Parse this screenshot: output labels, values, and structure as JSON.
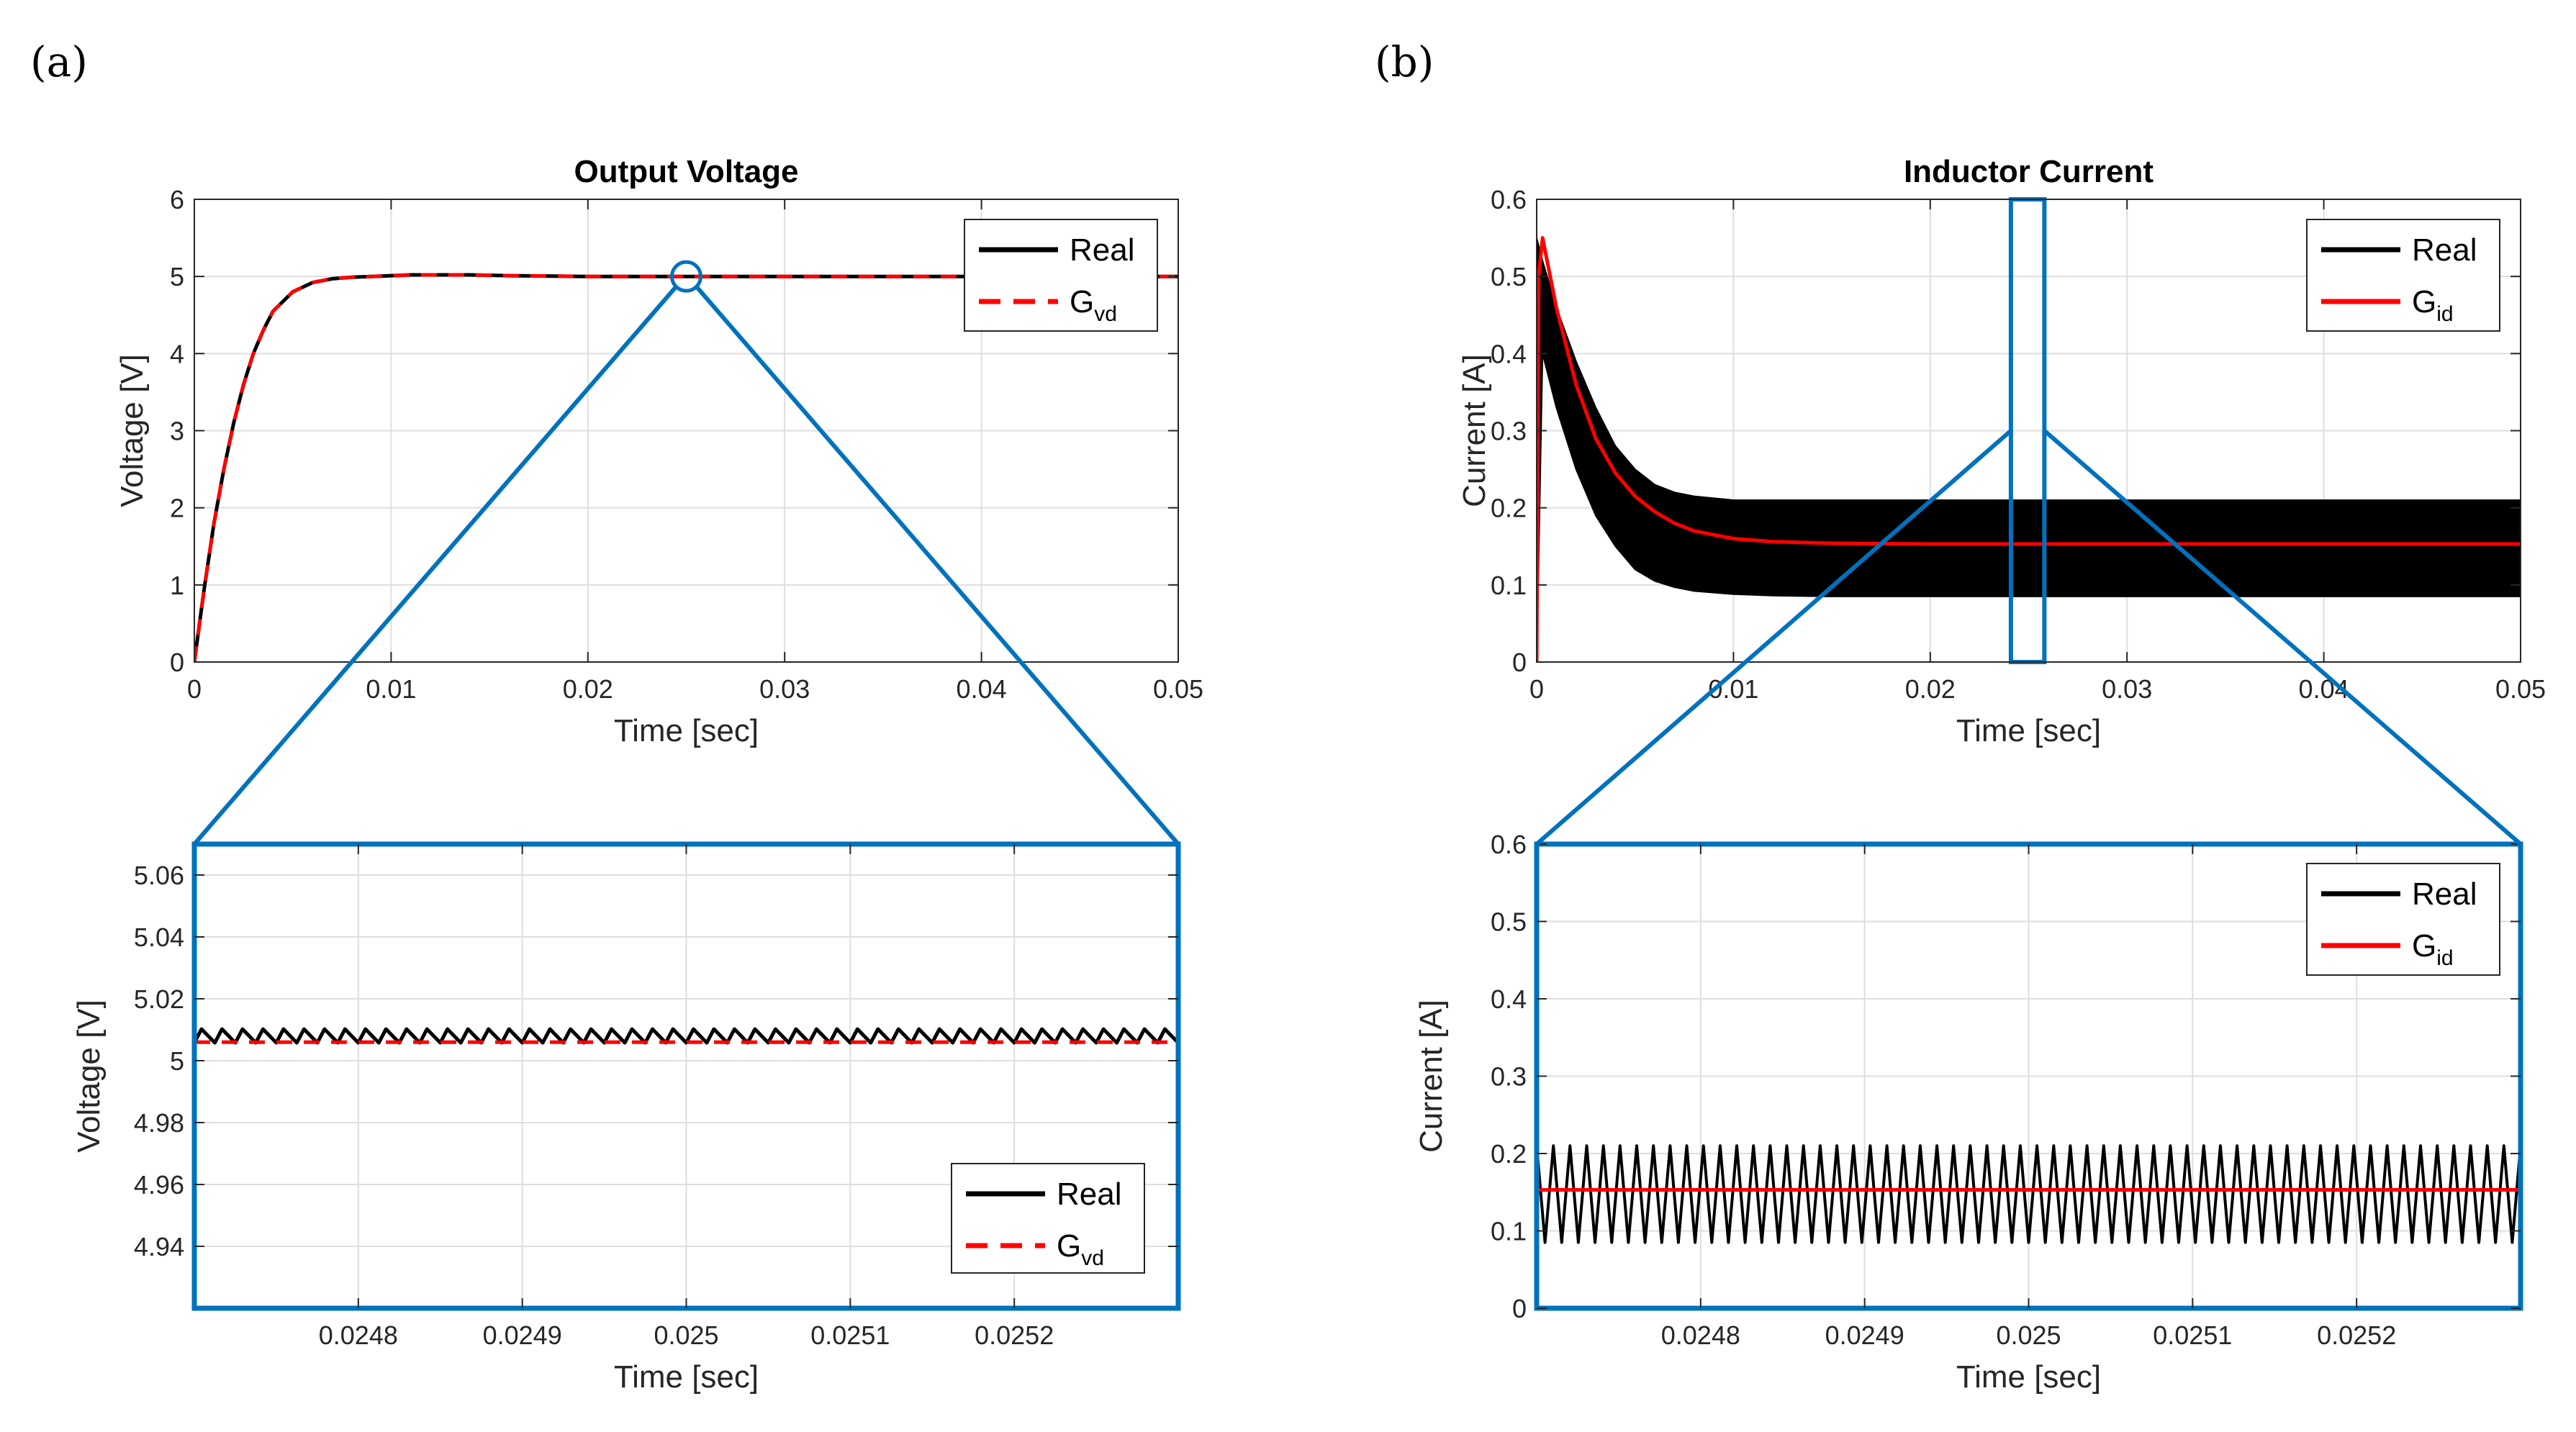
{
  "panel_labels": [
    "(a)",
    "(b)"
  ],
  "colors": {
    "real": "#000000",
    "model": "#ff0000",
    "zoom": "#0072bd",
    "grid": "#dedede",
    "axes": "#262626"
  },
  "chart_data": [
    {
      "id": "a-main",
      "type": "line",
      "title": "Output Voltage",
      "xlabel": "Time [sec]",
      "ylabel": "Voltage [V]",
      "xlim": [
        0,
        0.05
      ],
      "ylim": [
        0,
        6
      ],
      "xticks": [
        0,
        0.01,
        0.02,
        0.03,
        0.04,
        0.05
      ],
      "xtick_labels": [
        "0",
        "0.01",
        "0.02",
        "0.03",
        "0.04",
        "0.05"
      ],
      "yticks": [
        0,
        1,
        2,
        3,
        4,
        5,
        6
      ],
      "ytick_labels": [
        "0",
        "1",
        "2",
        "3",
        "4",
        "5",
        "6"
      ],
      "grid": true,
      "legend_position": "top-right",
      "series": [
        {
          "name": "Real",
          "sub": "",
          "style": "solid",
          "color": "#000000",
          "x": [
            0,
            0.0005,
            0.001,
            0.0015,
            0.002,
            0.0025,
            0.003,
            0.0035,
            0.004,
            0.005,
            0.006,
            0.007,
            0.008,
            0.009,
            0.01,
            0.011,
            0.012,
            0.014,
            0.016,
            0.02,
            0.03,
            0.04,
            0.05
          ],
          "y": [
            0,
            0.95,
            1.8,
            2.5,
            3.1,
            3.6,
            4.0,
            4.3,
            4.55,
            4.8,
            4.92,
            4.97,
            4.99,
            5.0,
            5.01,
            5.02,
            5.02,
            5.02,
            5.01,
            5.0,
            5.0,
            5.0,
            5.0
          ]
        },
        {
          "name": "G",
          "sub": "vd",
          "style": "dashed",
          "color": "#ff0000",
          "x": [
            0,
            0.0005,
            0.001,
            0.0015,
            0.002,
            0.0025,
            0.003,
            0.0035,
            0.004,
            0.005,
            0.006,
            0.007,
            0.008,
            0.009,
            0.01,
            0.011,
            0.012,
            0.014,
            0.016,
            0.02,
            0.03,
            0.04,
            0.05
          ],
          "y": [
            0,
            0.95,
            1.8,
            2.5,
            3.1,
            3.6,
            4.0,
            4.3,
            4.55,
            4.8,
            4.92,
            4.97,
            4.99,
            5.0,
            5.01,
            5.02,
            5.02,
            5.02,
            5.01,
            5.0,
            5.0,
            5.0,
            5.0
          ]
        }
      ],
      "zoom_marker": {
        "shape": "circle",
        "x": 0.025,
        "y": 5.0
      }
    },
    {
      "id": "a-zoom",
      "type": "line",
      "title": "",
      "xlabel": "Time [sec]",
      "ylabel": "Voltage [V]",
      "xlim": [
        0.0247,
        0.0253
      ],
      "ylim": [
        4.92,
        5.07
      ],
      "xticks": [
        0.0248,
        0.0249,
        0.025,
        0.0251,
        0.0252
      ],
      "xtick_labels": [
        "0.0248",
        "0.0249",
        "0.025",
        "0.0251",
        "0.0252"
      ],
      "yticks": [
        4.94,
        4.96,
        4.98,
        5.0,
        5.02,
        5.04,
        5.06
      ],
      "ytick_labels": [
        "4.94",
        "4.96",
        "4.98",
        "5",
        "5.02",
        "5.04",
        "5.06"
      ],
      "grid": true,
      "legend_position": "bottom-right",
      "series": [
        {
          "name": "Real",
          "sub": "",
          "style": "solid",
          "color": "#000000",
          "signal": "ripple",
          "mean": 5.008,
          "amplitude": 0.0022,
          "cycles": 48
        },
        {
          "name": "G",
          "sub": "vd",
          "style": "dashed",
          "color": "#ff0000",
          "signal": "constant",
          "value": 5.006
        }
      ]
    },
    {
      "id": "b-main",
      "type": "line",
      "title": "Inductor Current",
      "xlabel": "Time [sec]",
      "ylabel": "Current [A]",
      "xlim": [
        0,
        0.05
      ],
      "ylim": [
        0,
        0.6
      ],
      "xticks": [
        0,
        0.01,
        0.02,
        0.03,
        0.04,
        0.05
      ],
      "xtick_labels": [
        "0",
        "0.01",
        "0.02",
        "0.03",
        "0.04",
        "0.05"
      ],
      "yticks": [
        0,
        0.1,
        0.2,
        0.3,
        0.4,
        0.5,
        0.6
      ],
      "ytick_labels": [
        "0",
        "0.1",
        "0.2",
        "0.3",
        "0.4",
        "0.5",
        "0.6"
      ],
      "grid": true,
      "legend_position": "top-right",
      "series": [
        {
          "name": "Real",
          "sub": "",
          "style": "band",
          "color": "#000000",
          "x": [
            0,
            0.0003,
            0.001,
            0.002,
            0.003,
            0.004,
            0.005,
            0.006,
            0.007,
            0.008,
            0.01,
            0.012,
            0.015,
            0.02,
            0.03,
            0.04,
            0.05
          ],
          "upper": [
            0.55,
            0.52,
            0.46,
            0.39,
            0.33,
            0.28,
            0.25,
            0.23,
            0.22,
            0.215,
            0.21,
            0.21,
            0.21,
            0.21,
            0.21,
            0.21,
            0.21
          ],
          "lower": [
            0.0,
            0.4,
            0.33,
            0.25,
            0.19,
            0.15,
            0.12,
            0.105,
            0.097,
            0.092,
            0.088,
            0.086,
            0.085,
            0.085,
            0.085,
            0.085,
            0.085
          ]
        },
        {
          "name": "G",
          "sub": "id",
          "style": "solid",
          "color": "#ff0000",
          "x": [
            0,
            0.0001,
            0.0003,
            0.001,
            0.002,
            0.003,
            0.004,
            0.005,
            0.006,
            0.007,
            0.008,
            0.009,
            0.01,
            0.012,
            0.015,
            0.02,
            0.03,
            0.04,
            0.05
          ],
          "y": [
            0,
            0.5,
            0.55,
            0.46,
            0.36,
            0.29,
            0.245,
            0.215,
            0.195,
            0.18,
            0.17,
            0.165,
            0.16,
            0.156,
            0.154,
            0.153,
            0.153,
            0.153,
            0.153
          ]
        }
      ],
      "zoom_marker": {
        "shape": "rect",
        "x0": 0.0241,
        "x1": 0.0258,
        "y0": 0,
        "y1": 0.6
      }
    },
    {
      "id": "b-zoom",
      "type": "line",
      "title": "",
      "xlabel": "Time [sec]",
      "ylabel": "Current [A]",
      "xlim": [
        0.0247,
        0.0253
      ],
      "ylim": [
        0,
        0.6
      ],
      "xticks": [
        0.0248,
        0.0249,
        0.025,
        0.0251,
        0.0252
      ],
      "xtick_labels": [
        "0.0248",
        "0.0249",
        "0.025",
        "0.0251",
        "0.0252"
      ],
      "yticks": [
        0,
        0.1,
        0.2,
        0.3,
        0.4,
        0.5,
        0.6
      ],
      "ytick_labels": [
        "0",
        "0.1",
        "0.2",
        "0.3",
        "0.4",
        "0.5",
        "0.6"
      ],
      "grid": true,
      "legend_position": "top-right",
      "series": [
        {
          "name": "Real",
          "sub": "",
          "style": "solid",
          "color": "#000000",
          "signal": "triangle",
          "min": 0.085,
          "max": 0.21,
          "cycles": 59
        },
        {
          "name": "G",
          "sub": "id",
          "style": "solid",
          "color": "#ff0000",
          "signal": "constant",
          "value": 0.153
        }
      ]
    }
  ]
}
